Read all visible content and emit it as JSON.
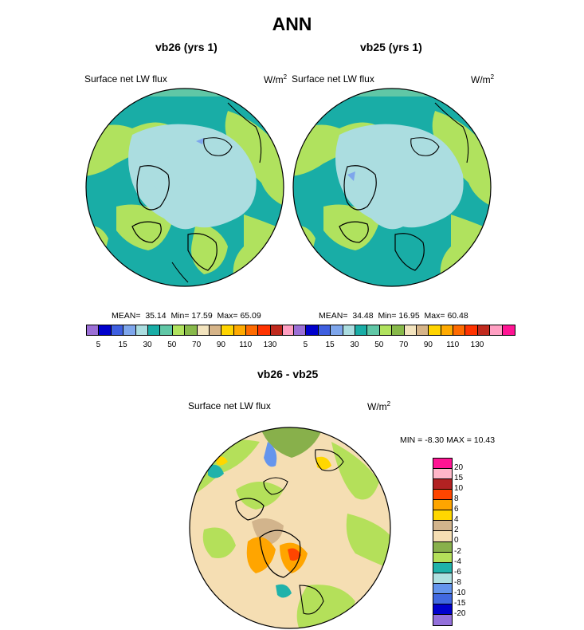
{
  "title": "ANN",
  "panels": [
    {
      "id": "vb26",
      "title": "vb26 (yrs 1)",
      "variable": "Surface net LW flux",
      "unit_base": "W/m",
      "unit_exp": "2",
      "stats": {
        "mean_label": "MEAN=",
        "mean": "35.14",
        "min_label": "Min=",
        "min": "17.59",
        "max_label": "Max=",
        "max": "65.09"
      }
    },
    {
      "id": "vb25",
      "title": "vb25 (yrs 1)",
      "variable": "Surface net LW flux",
      "unit_base": "W/m",
      "unit_exp": "2",
      "stats": {
        "mean_label": "MEAN=",
        "mean": "34.48",
        "min_label": "Min=",
        "min": "16.95",
        "max_label": "Max=",
        "max": "60.48"
      }
    }
  ],
  "diff": {
    "title": "vb26 - vb25",
    "variable": "Surface net LW flux",
    "unit_base": "W/m",
    "unit_exp": "2",
    "minmax": "MIN =  -8.30 MAX =  10.43"
  },
  "abs_colorbar": {
    "colors": [
      "#9b6fd6",
      "#0000cc",
      "#3e5fe0",
      "#7ea6ec",
      "#abdde0",
      "#19ada6",
      "#60c7a6",
      "#b0e25e",
      "#88b94a",
      "#f3e4be",
      "#d6b488",
      "#ffd400",
      "#ffaa00",
      "#ff6b00",
      "#ff3300",
      "#c02a1e",
      "#ff9fc2",
      "#ff1493"
    ],
    "ticks": [
      "5",
      "15",
      "30",
      "50",
      "70",
      "90",
      "110",
      "130"
    ]
  },
  "diff_colorbar": {
    "colors": [
      "#ff1493",
      "#ffb6c8",
      "#b22222",
      "#ff4500",
      "#ffa500",
      "#ffd700",
      "#d2b48c",
      "#f5deb3",
      "#88b04b",
      "#b4e05a",
      "#20b2aa",
      "#afe0e0",
      "#6495ed",
      "#4169e1",
      "#0000cd",
      "#9370db"
    ],
    "ticks": [
      "20",
      "15",
      "10",
      "8",
      "6",
      "4",
      "2",
      "0",
      "-2",
      "-4",
      "-6",
      "-8",
      "-10",
      "-15",
      "-20"
    ]
  }
}
